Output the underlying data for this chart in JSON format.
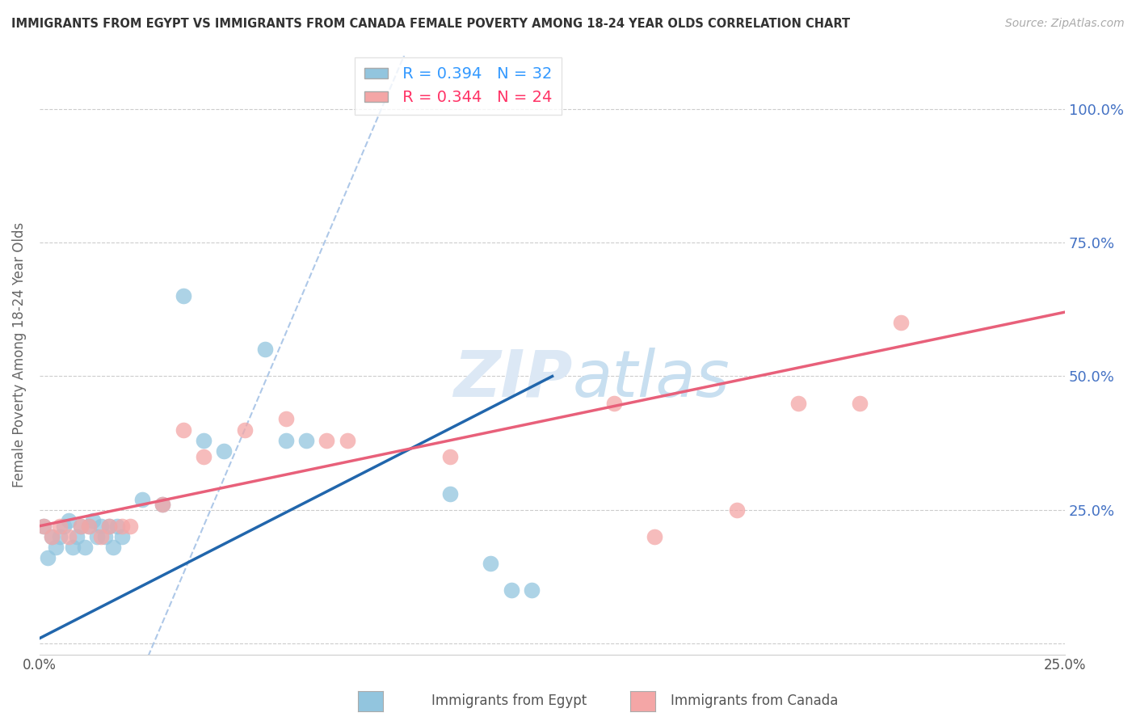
{
  "title": "IMMIGRANTS FROM EGYPT VS IMMIGRANTS FROM CANADA FEMALE POVERTY AMONG 18-24 YEAR OLDS CORRELATION CHART",
  "source": "Source: ZipAtlas.com",
  "ylabel": "Female Poverty Among 18-24 Year Olds",
  "xlim": [
    0.0,
    0.25
  ],
  "ylim": [
    -0.02,
    1.1
  ],
  "egypt_color": "#92c5de",
  "canada_color": "#f4a6a6",
  "egypt_line_color": "#2166ac",
  "canada_line_color": "#e8607a",
  "diagonal_color": "#aec8e8",
  "legend_egypt_r": "R = 0.394",
  "legend_egypt_n": "N = 32",
  "legend_canada_r": "R = 0.344",
  "legend_canada_n": "N = 24",
  "egypt_x": [
    0.001,
    0.002,
    0.003,
    0.004,
    0.005,
    0.006,
    0.007,
    0.008,
    0.009,
    0.01,
    0.011,
    0.012,
    0.013,
    0.014,
    0.015,
    0.016,
    0.017,
    0.018,
    0.019,
    0.02,
    0.025,
    0.03,
    0.035,
    0.04,
    0.045,
    0.055,
    0.06,
    0.065,
    0.1,
    0.11,
    0.115,
    0.12
  ],
  "egypt_y": [
    0.22,
    0.16,
    0.2,
    0.18,
    0.2,
    0.22,
    0.23,
    0.18,
    0.2,
    0.22,
    0.18,
    0.22,
    0.23,
    0.2,
    0.22,
    0.2,
    0.22,
    0.18,
    0.22,
    0.2,
    0.27,
    0.26,
    0.65,
    0.38,
    0.36,
    0.55,
    0.38,
    0.38,
    0.28,
    0.15,
    0.1,
    0.1
  ],
  "canada_x": [
    0.001,
    0.003,
    0.005,
    0.007,
    0.01,
    0.012,
    0.015,
    0.017,
    0.02,
    0.022,
    0.03,
    0.035,
    0.04,
    0.05,
    0.06,
    0.07,
    0.075,
    0.1,
    0.14,
    0.15,
    0.17,
    0.185,
    0.2,
    0.21
  ],
  "canada_y": [
    0.22,
    0.2,
    0.22,
    0.2,
    0.22,
    0.22,
    0.2,
    0.22,
    0.22,
    0.22,
    0.26,
    0.4,
    0.35,
    0.4,
    0.42,
    0.38,
    0.38,
    0.35,
    0.45,
    0.2,
    0.25,
    0.45,
    0.45,
    0.6
  ],
  "egypt_line_x": [
    0.0,
    0.125
  ],
  "egypt_line_y": [
    0.01,
    0.5
  ],
  "canada_line_x": [
    0.0,
    0.25
  ],
  "canada_line_y": [
    0.22,
    0.62
  ]
}
